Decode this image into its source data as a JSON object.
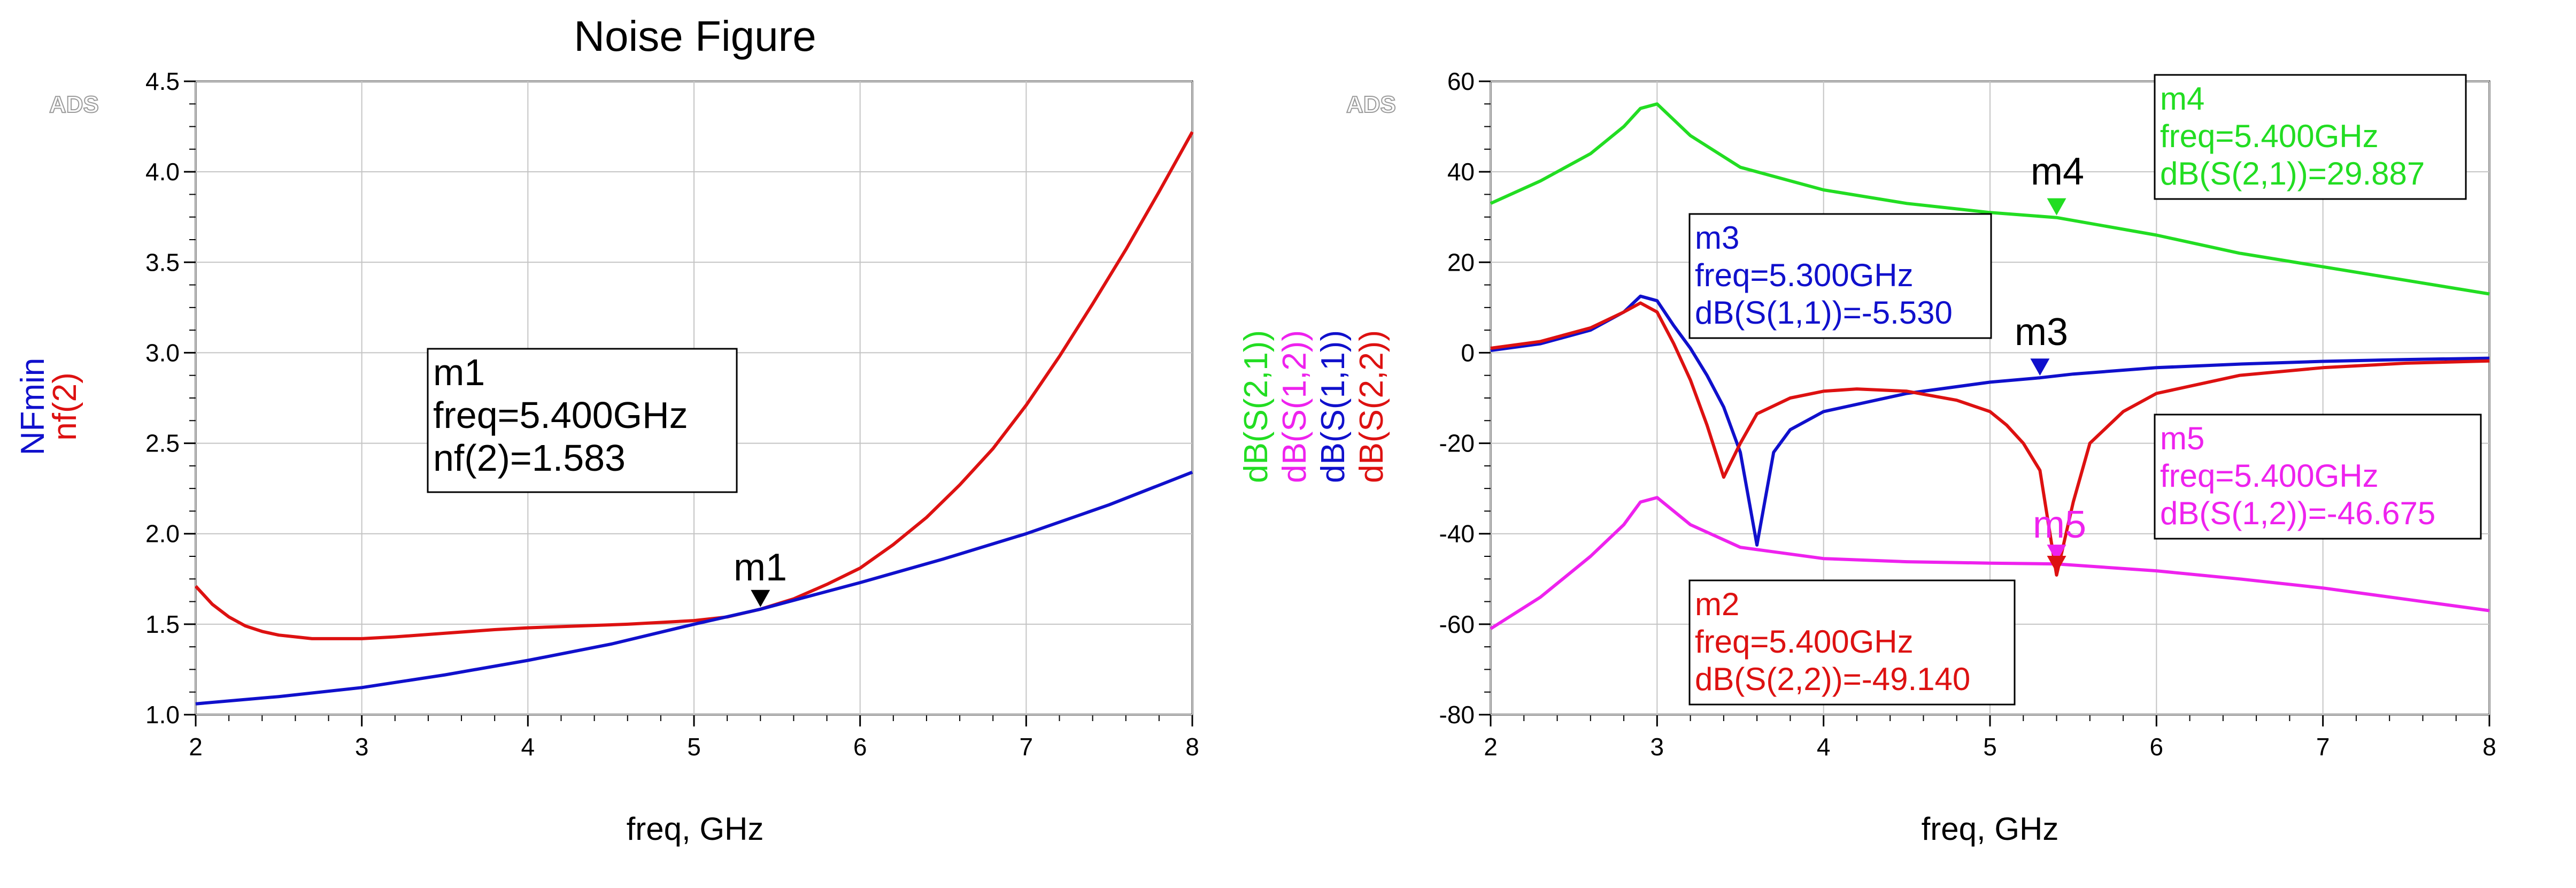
{
  "colors": {
    "red": "#dd1111",
    "blue": "#1010cc",
    "green": "#22dd22",
    "magenta": "#ee22ee",
    "grid": "#c4c4c4",
    "axis": "#000000",
    "watermark": "#9a9a9a"
  },
  "chart_data": [
    {
      "type": "line",
      "title": "Noise Figure",
      "watermark": "ADS",
      "xlabel": "freq, GHz",
      "ylabel_series": [
        "NFmin",
        "nf(2)"
      ],
      "xlim": [
        2,
        8
      ],
      "ylim": [
        1.0,
        4.5
      ],
      "xticks": [
        "2",
        "3",
        "4",
        "5",
        "6",
        "7",
        "8"
      ],
      "yticks": [
        "1.0",
        "1.5",
        "2.0",
        "2.5",
        "3.0",
        "3.5",
        "4.0",
        "4.5"
      ],
      "grid": true,
      "series": [
        {
          "name": "nf(2)",
          "color": "#dd1111",
          "x": [
            2.0,
            2.1,
            2.2,
            2.3,
            2.4,
            2.5,
            2.6,
            2.7,
            2.8,
            2.9,
            3.0,
            3.2,
            3.5,
            3.8,
            4.0,
            4.3,
            4.6,
            5.0,
            5.2,
            5.4,
            5.6,
            5.8,
            6.0,
            6.2,
            6.4,
            6.6,
            6.8,
            7.0,
            7.2,
            7.4,
            7.6,
            7.8,
            8.0
          ],
          "y": [
            1.71,
            1.61,
            1.54,
            1.49,
            1.46,
            1.44,
            1.43,
            1.42,
            1.42,
            1.42,
            1.42,
            1.43,
            1.45,
            1.47,
            1.48,
            1.49,
            1.5,
            1.52,
            1.54,
            1.583,
            1.64,
            1.72,
            1.81,
            1.94,
            2.09,
            2.27,
            2.47,
            2.71,
            2.98,
            3.27,
            3.57,
            3.89,
            4.22
          ]
        },
        {
          "name": "NFmin",
          "color": "#1010cc",
          "x": [
            2.0,
            2.5,
            3.0,
            3.5,
            4.0,
            4.5,
            5.0,
            5.4,
            6.0,
            6.5,
            7.0,
            7.5,
            8.0
          ],
          "y": [
            1.06,
            1.1,
            1.15,
            1.22,
            1.3,
            1.39,
            1.5,
            1.583,
            1.73,
            1.86,
            2.0,
            2.16,
            2.34
          ]
        }
      ],
      "markers": [
        {
          "id": "m1",
          "x": 5.4,
          "y": 1.583,
          "color": "#000000",
          "box_lines": [
            "m1",
            "freq=5.400GHz",
            "nf(2)=1.583"
          ]
        }
      ]
    },
    {
      "type": "line",
      "title": "",
      "watermark": "ADS",
      "xlabel": "freq, GHz",
      "ylabel_series": [
        "dB(S(2,1))",
        "dB(S(1,2))",
        "dB(S(1,1))",
        "dB(S(2,2))"
      ],
      "xlim": [
        2,
        8
      ],
      "ylim": [
        -80,
        60
      ],
      "xticks": [
        "2",
        "3",
        "4",
        "5",
        "6",
        "7",
        "8"
      ],
      "yticks": [
        "-80",
        "-60",
        "-40",
        "-20",
        "0",
        "20",
        "40",
        "60"
      ],
      "grid": true,
      "series": [
        {
          "name": "dB(S(2,1))",
          "color": "#22dd22",
          "x": [
            2.0,
            2.3,
            2.6,
            2.8,
            2.9,
            3.0,
            3.2,
            3.5,
            4.0,
            4.5,
            5.0,
            5.4,
            6.0,
            6.5,
            7.0,
            7.5,
            8.0
          ],
          "y": [
            33,
            38,
            44,
            50,
            54,
            55,
            48,
            41,
            36,
            33,
            31,
            29.887,
            26,
            22,
            19,
            16,
            13
          ]
        },
        {
          "name": "dB(S(1,2))",
          "color": "#ee22ee",
          "x": [
            2.0,
            2.3,
            2.6,
            2.8,
            2.9,
            3.0,
            3.2,
            3.5,
            4.0,
            4.5,
            5.0,
            5.4,
            6.0,
            6.5,
            7.0,
            7.5,
            8.0
          ],
          "y": [
            -61,
            -54,
            -45,
            -38,
            -33,
            -32,
            -38,
            -43,
            -45.5,
            -46.2,
            -46.5,
            -46.675,
            -48.2,
            -50,
            -52,
            -54.5,
            -57
          ]
        },
        {
          "name": "dB(S(1,1))",
          "color": "#1010cc",
          "x": [
            2.0,
            2.3,
            2.6,
            2.8,
            2.9,
            3.0,
            3.1,
            3.2,
            3.3,
            3.4,
            3.5,
            3.6,
            3.7,
            3.8,
            4.0,
            4.5,
            5.0,
            5.3,
            5.5,
            6.0,
            6.5,
            7.0,
            7.5,
            8.0
          ],
          "y": [
            0.5,
            2,
            5,
            9,
            12.5,
            11.5,
            6,
            1,
            -5,
            -12,
            -22,
            -42.5,
            -22,
            -17,
            -13,
            -9,
            -6.5,
            -5.53,
            -4.7,
            -3.3,
            -2.5,
            -1.9,
            -1.5,
            -1.2
          ]
        },
        {
          "name": "dB(S(2,2))",
          "color": "#dd1111",
          "x": [
            2.0,
            2.3,
            2.6,
            2.8,
            2.9,
            3.0,
            3.1,
            3.2,
            3.3,
            3.4,
            3.5,
            3.6,
            3.8,
            4.0,
            4.2,
            4.5,
            4.8,
            5.0,
            5.1,
            5.2,
            5.3,
            5.4,
            5.5,
            5.6,
            5.8,
            6.0,
            6.5,
            7.0,
            7.5,
            8.0
          ],
          "y": [
            1.0,
            2.5,
            5.5,
            9,
            11,
            9,
            2,
            -6,
            -16,
            -27.5,
            -20,
            -13.5,
            -10,
            -8.5,
            -8,
            -8.5,
            -10.5,
            -13,
            -16,
            -20,
            -26,
            -49.14,
            -33,
            -20,
            -13,
            -9,
            -5,
            -3.3,
            -2.3,
            -1.8
          ]
        }
      ],
      "markers": [
        {
          "id": "m4",
          "x": 5.4,
          "y": 29.887,
          "color": "#22dd22",
          "box_lines": [
            "m4",
            "freq=5.400GHz",
            "dB(S(2,1))=29.887"
          ]
        },
        {
          "id": "m3",
          "x": 5.3,
          "y": -5.53,
          "color": "#1010cc",
          "box_lines": [
            "m3",
            "freq=5.300GHz",
            "dB(S(1,1))=-5.530"
          ]
        },
        {
          "id": "m5",
          "x": 5.4,
          "y": -46.675,
          "color": "#ee22ee",
          "box_lines": [
            "m5",
            "freq=5.400GHz",
            "dB(S(1,2))=-46.675"
          ]
        },
        {
          "id": "m2",
          "x": 5.4,
          "y": -49.14,
          "color": "#dd1111",
          "box_lines": [
            "m2",
            "freq=5.400GHz",
            "dB(S(2,2))=-49.140"
          ]
        }
      ]
    }
  ]
}
